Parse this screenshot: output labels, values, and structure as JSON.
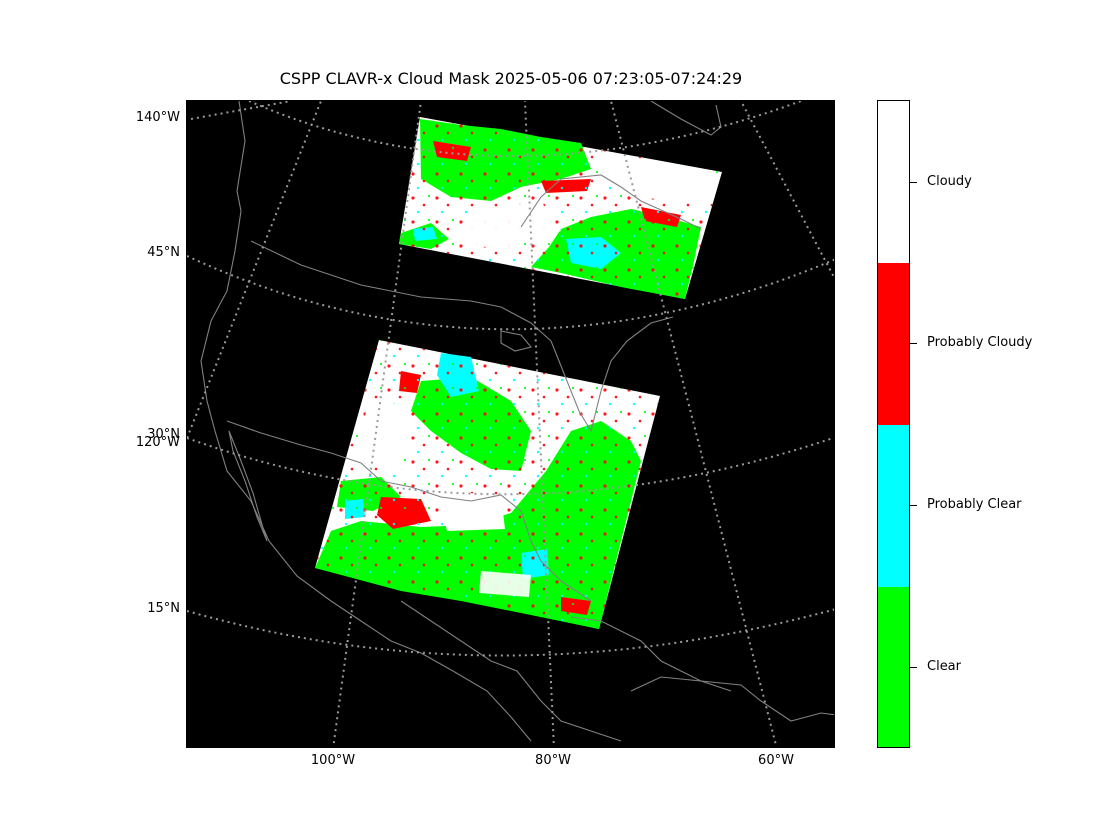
{
  "title": "CSPP CLAVR-x Cloud Mask 2025-05-06 07:23:05-07:24:29",
  "map": {
    "background_color": "#000000",
    "coastline_color": "#808080",
    "graticule_color": "#9a9a9a",
    "lat_labels": [
      "140°W",
      "45°N",
      "30°N",
      "120°W",
      "15°N"
    ],
    "lon_labels": [
      "100°W",
      "80°W",
      "60°W"
    ]
  },
  "legend": {
    "categories": [
      {
        "label": "Cloudy",
        "color": "#ffffff"
      },
      {
        "label": "Probably Cloudy",
        "color": "#ff0000"
      },
      {
        "label": "Probably Clear",
        "color": "#00ffff"
      },
      {
        "label": "Clear",
        "color": "#00ff00"
      }
    ]
  }
}
